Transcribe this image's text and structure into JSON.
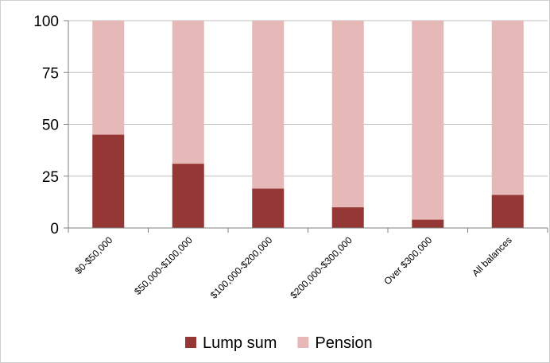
{
  "chart_data": {
    "type": "bar",
    "stacked": true,
    "categories": [
      "$0-$50,000",
      "$50,000-$100,000",
      "$100,000-$200,000",
      "$200,000-$300,000",
      "Over $300,000",
      "All balances"
    ],
    "series": [
      {
        "name": "Lump sum",
        "values": [
          45,
          31,
          19,
          10,
          4,
          16
        ],
        "color": "#953735"
      },
      {
        "name": "Pension",
        "values": [
          55,
          69,
          81,
          90,
          96,
          84
        ],
        "color": "#e6b9b8"
      }
    ],
    "yticks": [
      0,
      25,
      50,
      75,
      100
    ],
    "ylim": [
      0,
      100
    ],
    "grid": true,
    "legend_position": "bottom",
    "title": "",
    "xlabel": "",
    "ylabel": ""
  }
}
